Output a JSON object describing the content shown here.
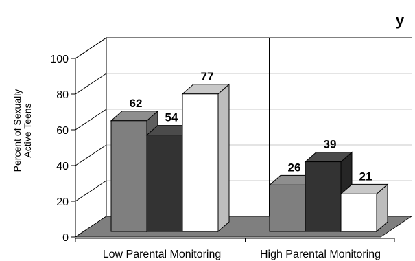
{
  "chart_data": {
    "type": "bar",
    "title": "",
    "title_fragment": "y",
    "xlabel": "",
    "ylabel_line1": "Percent of Sexually",
    "ylabel_line2": "Active Teens",
    "ylim": [
      0,
      100
    ],
    "yticks": [
      "0",
      "20",
      "40",
      "60",
      "80",
      "100"
    ],
    "categories": [
      "Low Parental Monitoring",
      "High Parental Monitoring"
    ],
    "series": [
      {
        "values": [
          62,
          26
        ],
        "color": "#7f7f7f"
      },
      {
        "values": [
          54,
          39
        ],
        "color": "#333333"
      },
      {
        "values": [
          77,
          21
        ],
        "color": "#ffffff"
      }
    ],
    "data_labels": [
      [
        "62",
        "54",
        "77"
      ],
      [
        "26",
        "39",
        "21"
      ]
    ],
    "grid": true,
    "legend": "none",
    "style": "3d"
  }
}
